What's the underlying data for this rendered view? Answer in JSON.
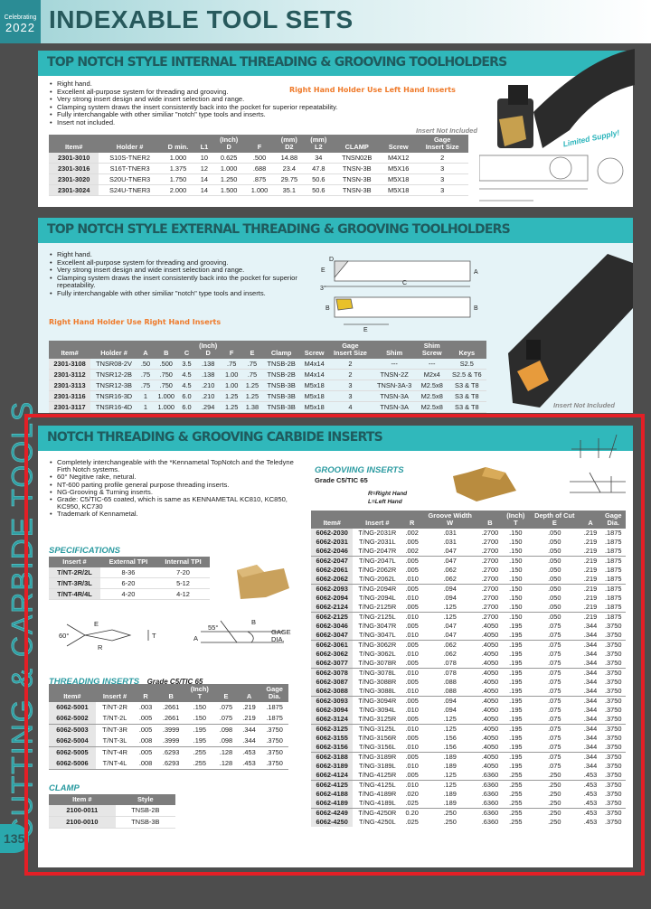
{
  "header": {
    "badge_top": "Celebrating",
    "badge_year": "2022",
    "title": "INDEXABLE TOOL SETS"
  },
  "side": {
    "vertical_text": "CUTTING & CARBIDE TOOLS",
    "page_number": "135"
  },
  "colors": {
    "accent": "#30b8bb",
    "title": "#27595c",
    "highlight_box": "#e41f26",
    "orange_note": "#ef7a2a"
  },
  "internal": {
    "title": "TOP NOTCH STYLE INTERNAL THREADING & GROOVING TOOLHOLDERS",
    "bullets": [
      "Right hand.",
      "Excellent all-purpose system for threading and grooving.",
      "Very strong insert design and wide insert selection and range.",
      "Clamping system draws the insert consistently back into the pocket for superior repeatability.",
      "Fully interchangable with other similiar \"notch\" type tools and inserts.",
      "Insert not included."
    ],
    "note": "Right Hand Holder Use Left Hand Inserts",
    "insert_note": "Insert Not Included",
    "limited": "Limited Supply!",
    "table": {
      "headers": [
        "Item#",
        "Holder #",
        "D min.",
        "L1",
        "(Inch)\nD",
        "F",
        "(mm)\nD2",
        "(mm)\nL2",
        "CLAMP",
        "Screw",
        "Gage\nInsert Size"
      ],
      "rows": [
        [
          "2301-3010",
          "S10S-TNER2",
          "1.000",
          "10",
          "0.625",
          ".500",
          "14.88",
          "34",
          "TNSN02B",
          "M4X12",
          "2"
        ],
        [
          "2301-3016",
          "S16T-TNER3",
          "1.375",
          "12",
          "1.000",
          ".688",
          "23.4",
          "47.8",
          "TNSN-3B",
          "M5X16",
          "3"
        ],
        [
          "2301-3020",
          "S20U-TNER3",
          "1.750",
          "14",
          "1.250",
          ".875",
          "29.75",
          "50.6",
          "TNSN-3B",
          "M5X18",
          "3"
        ],
        [
          "2301-3024",
          "S24U-TNER3",
          "2.000",
          "14",
          "1.500",
          "1.000",
          "35.1",
          "50.6",
          "TNSN-3B",
          "M5X18",
          "3"
        ]
      ]
    }
  },
  "external": {
    "title": "TOP NOTCH STYLE EXTERNAL THREADING & GROOVING TOOLHOLDERS",
    "bullets": [
      "Right hand.",
      "Excellent all-purpose system for threading and grooving.",
      "Very strong insert design and wide insert selection and range.",
      "Clamping system draws the insert consistently back into the pocket for superior repeatability.",
      "Fully interchangable with other similiar \"notch\" type tools and inserts."
    ],
    "note": "Right Hand Holder Use Right Hand Inserts",
    "insert_note": "Insert Not Included",
    "diagram_labels": {
      "a": "A",
      "b": "B",
      "c": "C",
      "d": "D",
      "e": "E",
      "angle": "3°"
    },
    "table": {
      "headers": [
        "Item#",
        "Holder #",
        "A",
        "B",
        "C",
        "(Inch)\nD",
        "F",
        "E",
        "Clamp",
        "Screw",
        "Gage\nInsert Size",
        "Shim",
        "Shim\nScrew",
        "Keys"
      ],
      "rows": [
        [
          "2301-3108",
          "TNSR08-2V",
          ".50",
          ".500",
          "3.5",
          ".138",
          ".75",
          ".75",
          "TNSB-2B",
          "M4x14",
          "2",
          "---",
          "---",
          "S2.5"
        ],
        [
          "2301-3112",
          "TNSR12-2B",
          ".75",
          ".750",
          "4.5",
          ".138",
          "1.00",
          ".75",
          "TNSB-2B",
          "M4x14",
          "2",
          "TNSN-2Z",
          "M2x4",
          "S2.5 & T6"
        ],
        [
          "2301-3113",
          "TNSR12-3B",
          ".75",
          ".750",
          "4.5",
          ".210",
          "1.00",
          "1.25",
          "TNSB-3B",
          "M5x18",
          "3",
          "TNSN-3A-3",
          "M2.5x8",
          "S3 & T8"
        ],
        [
          "2301-3116",
          "TNSR16-3D",
          "1",
          "1.000",
          "6.0",
          ".210",
          "1.25",
          "1.25",
          "TNSB-3B",
          "M5x18",
          "3",
          "TNSN-3A",
          "M2.5x8",
          "S3 & T8"
        ],
        [
          "2301-3117",
          "TNSR16-4D",
          "1",
          "1.000",
          "6.0",
          ".294",
          "1.25",
          "1.38",
          "TNSB-3B",
          "M5x18",
          "4",
          "TNSN-3A",
          "M2.5x8",
          "S3 & T8"
        ]
      ]
    }
  },
  "inserts": {
    "title": "NOTCH THREADING & GROOVING CARBIDE INSERTS",
    "bullets": [
      "Completely interchangeable with the *Kennametal TopNotch and the Teledyne Firth Notch systems.",
      "60° Negitive rake, netural.",
      "NT-600 parting profile general purpose threading inserts.",
      "NG-Grooving & Turning inserts.",
      "Grade: C5/TIC-65 coated, which is same as KENNAMETAL KC810, KC850, KC950, KC730",
      "Trademark of Kennametal."
    ],
    "specifications": {
      "title": "SPECIFICATIONS",
      "headers": [
        "Insert #",
        "External TPI",
        "Internal TPI"
      ],
      "rows": [
        [
          "T/NT-2R/2L",
          "8-36",
          "7-20"
        ],
        [
          "T/NT-3R/3L",
          "6-20",
          "5-12"
        ],
        [
          "T/NT-4R/4L",
          "4-20",
          "4-12"
        ]
      ]
    },
    "diagram_labels": {
      "angle60": "60°",
      "e": "E",
      "r": "R",
      "t": "T",
      "angle55": "55°",
      "a": "A",
      "b": "B",
      "gage": "GAGE\nDIA."
    },
    "threading": {
      "title": "THREADING INSERTS",
      "grade": "Grade C5/TIC 65",
      "headers": [
        "Item#",
        "Insert #",
        "R",
        "B",
        "(Inch)\nT",
        "E",
        "A",
        "Gage\nDia."
      ],
      "rows": [
        [
          "6062-5001",
          "T/NT-2R",
          ".003",
          ".2661",
          ".150",
          ".075",
          ".219",
          ".1875"
        ],
        [
          "6062-5002",
          "T/NT-2L",
          ".005",
          ".2661",
          ".150",
          ".075",
          ".219",
          ".1875"
        ],
        [
          "6062-5003",
          "T/NT-3R",
          ".005",
          ".3999",
          ".195",
          ".098",
          ".344",
          ".3750"
        ],
        [
          "6062-5004",
          "T/NT-3L",
          ".008",
          ".3999",
          ".195",
          ".098",
          ".344",
          ".3750"
        ],
        [
          "6062-5005",
          "T/NT-4R",
          ".005",
          ".6293",
          ".255",
          ".128",
          ".453",
          ".3750"
        ],
        [
          "6062-5006",
          "T/NT-4L",
          ".008",
          ".6293",
          ".255",
          ".128",
          ".453",
          ".3750"
        ]
      ]
    },
    "clamp": {
      "title": "CLAMP",
      "headers": [
        "Item #",
        "Style"
      ],
      "rows": [
        [
          "2100-0011",
          "TNSB-2B"
        ],
        [
          "2100-0010",
          "TNSB-3B"
        ]
      ]
    },
    "grooving": {
      "title": "GROOVIING INSERTS",
      "grade": "Grade C5/TIC 65",
      "legend_r": "R=Right Hand",
      "legend_l": "L=Left Hand",
      "headers": [
        "Item#",
        "Insert #",
        "R",
        "Groove Width\nW",
        "B",
        "(Inch)\nT",
        "Depth of Cut\nE",
        "A",
        "Gage\nDia."
      ],
      "rows": [
        [
          "6062-2030",
          "T/NG-2031R",
          ".002",
          ".031",
          ".2700",
          ".150",
          ".050",
          ".219",
          ".1875"
        ],
        [
          "6062-2031",
          "T/NG-2031L",
          ".005",
          ".031",
          ".2700",
          ".150",
          ".050",
          ".219",
          ".1875"
        ],
        [
          "6062-2046",
          "T/NG-2047R",
          ".002",
          ".047",
          ".2700",
          ".150",
          ".050",
          ".219",
          ".1875"
        ],
        [
          "6062-2047",
          "T/NG-2047L",
          ".005",
          ".047",
          ".2700",
          ".150",
          ".050",
          ".219",
          ".1875"
        ],
        [
          "6062-2061",
          "T/NG-2062R",
          ".005",
          ".062",
          ".2700",
          ".150",
          ".050",
          ".219",
          ".1875"
        ],
        [
          "6062-2062",
          "T/NG-2062L",
          ".010",
          ".062",
          ".2700",
          ".150",
          ".050",
          ".219",
          ".1875"
        ],
        [
          "6062-2093",
          "T/NG-2094R",
          ".005",
          ".094",
          ".2700",
          ".150",
          ".050",
          ".219",
          ".1875"
        ],
        [
          "6062-2094",
          "T/NG-2094L",
          ".010",
          ".094",
          ".2700",
          ".150",
          ".050",
          ".219",
          ".1875"
        ],
        [
          "6062-2124",
          "T/NG-2125R",
          ".005",
          ".125",
          ".2700",
          ".150",
          ".050",
          ".219",
          ".1875"
        ],
        [
          "6062-2125",
          "T/NG-2125L",
          ".010",
          ".125",
          ".2700",
          ".150",
          ".050",
          ".219",
          ".1875"
        ],
        [
          "6062-3046",
          "T/NG-3047R",
          ".005",
          ".047",
          ".4050",
          ".195",
          ".075",
          ".344",
          ".3750"
        ],
        [
          "6062-3047",
          "T/NG-3047L",
          ".010",
          ".047",
          ".4050",
          ".195",
          ".075",
          ".344",
          ".3750"
        ],
        [
          "6062-3061",
          "T/NG-3062R",
          ".005",
          ".062",
          ".4050",
          ".195",
          ".075",
          ".344",
          ".3750"
        ],
        [
          "6062-3062",
          "T/NG-3062L",
          ".010",
          ".062",
          ".4050",
          ".195",
          ".075",
          ".344",
          ".3750"
        ],
        [
          "6062-3077",
          "T/NG-3078R",
          ".005",
          ".078",
          ".4050",
          ".195",
          ".075",
          ".344",
          ".3750"
        ],
        [
          "6062-3078",
          "T/NG-3078L",
          ".010",
          ".078",
          ".4050",
          ".195",
          ".075",
          ".344",
          ".3750"
        ],
        [
          "6062-3087",
          "T/NG-3088R",
          ".005",
          ".088",
          ".4050",
          ".195",
          ".075",
          ".344",
          ".3750"
        ],
        [
          "6062-3088",
          "T/NG-3088L",
          ".010",
          ".088",
          ".4050",
          ".195",
          ".075",
          ".344",
          ".3750"
        ],
        [
          "6062-3093",
          "T/NG-3094R",
          ".005",
          ".094",
          ".4050",
          ".195",
          ".075",
          ".344",
          ".3750"
        ],
        [
          "6062-3094",
          "T/NG-3094L",
          ".010",
          ".094",
          ".4050",
          ".195",
          ".075",
          ".344",
          ".3750"
        ],
        [
          "6062-3124",
          "T/NG-3125R",
          ".005",
          ".125",
          ".4050",
          ".195",
          ".075",
          ".344",
          ".3750"
        ],
        [
          "6062-3125",
          "T/NG-3125L",
          ".010",
          ".125",
          ".4050",
          ".195",
          ".075",
          ".344",
          ".3750"
        ],
        [
          "6062-3155",
          "T/NG-3156R",
          ".005",
          ".156",
          ".4050",
          ".195",
          ".075",
          ".344",
          ".3750"
        ],
        [
          "6062-3156",
          "T/NG-3156L",
          ".010",
          ".156",
          ".4050",
          ".195",
          ".075",
          ".344",
          ".3750"
        ],
        [
          "6062-3188",
          "T/NG-3189R",
          ".005",
          ".189",
          ".4050",
          ".195",
          ".075",
          ".344",
          ".3750"
        ],
        [
          "6062-3189",
          "T/NG-3189L",
          ".010",
          ".189",
          ".4050",
          ".195",
          ".075",
          ".344",
          ".3750"
        ],
        [
          "6062-4124",
          "T/NG-4125R",
          ".005",
          ".125",
          ".6360",
          ".255",
          ".250",
          ".453",
          ".3750"
        ],
        [
          "6062-4125",
          "T/NG-4125L",
          ".010",
          ".125",
          ".6360",
          ".255",
          ".250",
          ".453",
          ".3750"
        ],
        [
          "6062-4188",
          "T/NG-4189R",
          ".020",
          ".189",
          ".6360",
          ".255",
          ".250",
          ".453",
          ".3750"
        ],
        [
          "6062-4189",
          "T/NG-4189L",
          ".025",
          ".189",
          ".6360",
          ".255",
          ".250",
          ".453",
          ".3750"
        ],
        [
          "6062-4249",
          "T/NG-4250R",
          "0.20",
          ".250",
          ".6360",
          ".255",
          ".250",
          ".453",
          ".3750"
        ],
        [
          "6062-4250",
          "T/NG-4250L",
          ".025",
          ".250",
          ".6360",
          ".255",
          ".250",
          ".453",
          ".3750"
        ]
      ]
    }
  }
}
